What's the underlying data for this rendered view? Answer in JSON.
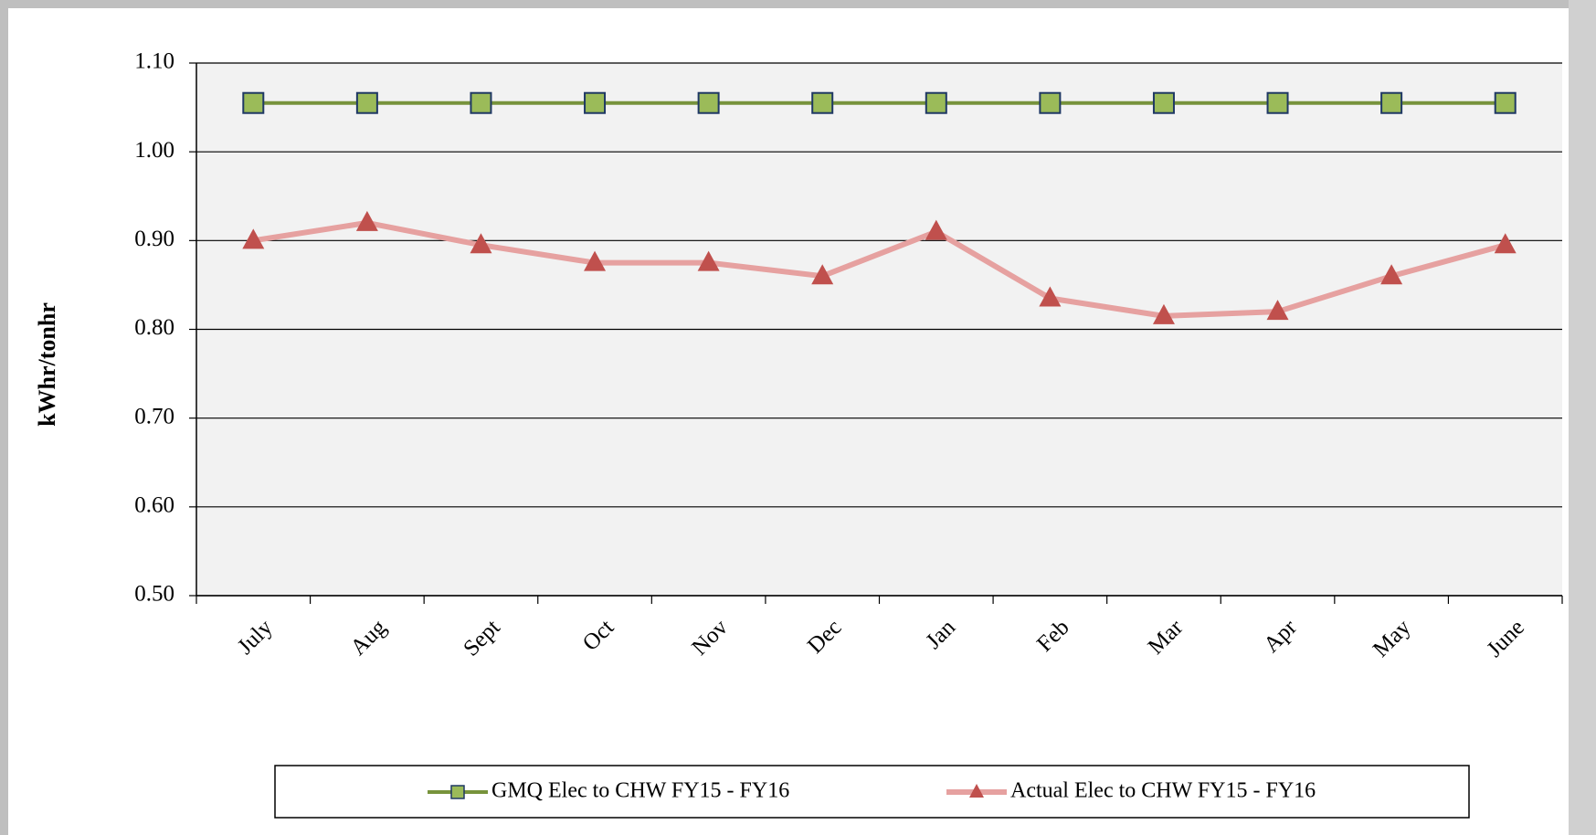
{
  "chart_data": {
    "type": "line",
    "y_label": "kWhr/tonhr",
    "categories": [
      "July",
      "Aug",
      "Sept",
      "Oct",
      "Nov",
      "Dec",
      "Jan",
      "Feb",
      "Mar",
      "Apr",
      "May",
      "June"
    ],
    "series": [
      {
        "name": "GMQ Elec to CHW FY15 - FY16",
        "color": "#77933c",
        "marker_color": "#9bbb59",
        "marker": "square",
        "values": [
          1.055,
          1.055,
          1.055,
          1.055,
          1.055,
          1.055,
          1.055,
          1.055,
          1.055,
          1.055,
          1.055,
          1.055
        ]
      },
      {
        "name": "Actual Elec to CHW FY15 - FY16",
        "color": "#e6a1a0",
        "marker_color": "#c0504d",
        "marker": "triangle",
        "values": [
          0.9,
          0.92,
          0.895,
          0.875,
          0.875,
          0.86,
          0.91,
          0.835,
          0.815,
          0.82,
          0.86,
          0.895
        ]
      }
    ],
    "ylim": [
      0.5,
      1.1
    ],
    "yticks": [
      {
        "value": 0.5,
        "label": "0.50"
      },
      {
        "value": 0.6,
        "label": "0.60"
      },
      {
        "value": 0.7,
        "label": "0.70"
      },
      {
        "value": 0.8,
        "label": "0.80"
      },
      {
        "value": 0.9,
        "label": "0.90"
      },
      {
        "value": 1.0,
        "label": "1.00"
      },
      {
        "value": 1.1,
        "label": "1.10"
      }
    ],
    "grid": true,
    "legend": "bottom"
  }
}
